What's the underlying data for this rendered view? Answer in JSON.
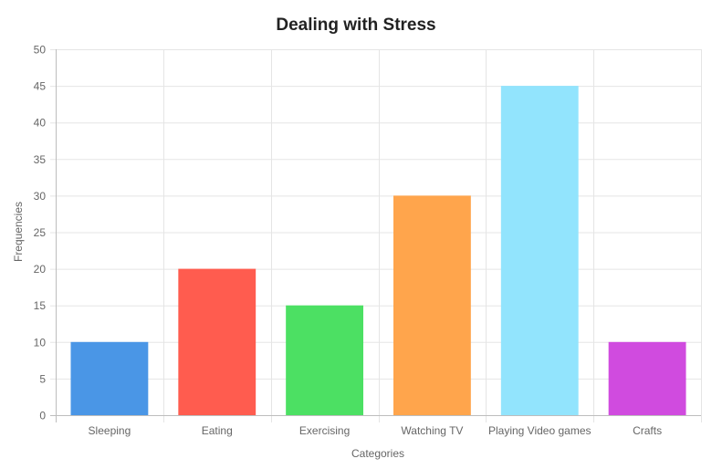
{
  "chart_data": {
    "type": "bar",
    "title": "Dealing with Stress",
    "xlabel": "Categories",
    "ylabel": "Frequencies",
    "categories": [
      "Sleeping",
      "Eating",
      "Exercising",
      "Watching TV",
      "Playing Video games",
      "Crafts"
    ],
    "values": [
      10,
      20,
      15,
      30,
      45,
      10
    ],
    "colors": [
      "#4a96e6",
      "#ff5c4f",
      "#4ce063",
      "#ffa54c",
      "#92e4fd",
      "#d04bdf"
    ],
    "ylim": [
      0,
      50
    ],
    "yticks": [
      0,
      5,
      10,
      15,
      20,
      25,
      30,
      35,
      40,
      45,
      50
    ],
    "grid": true,
    "legend": "none"
  }
}
